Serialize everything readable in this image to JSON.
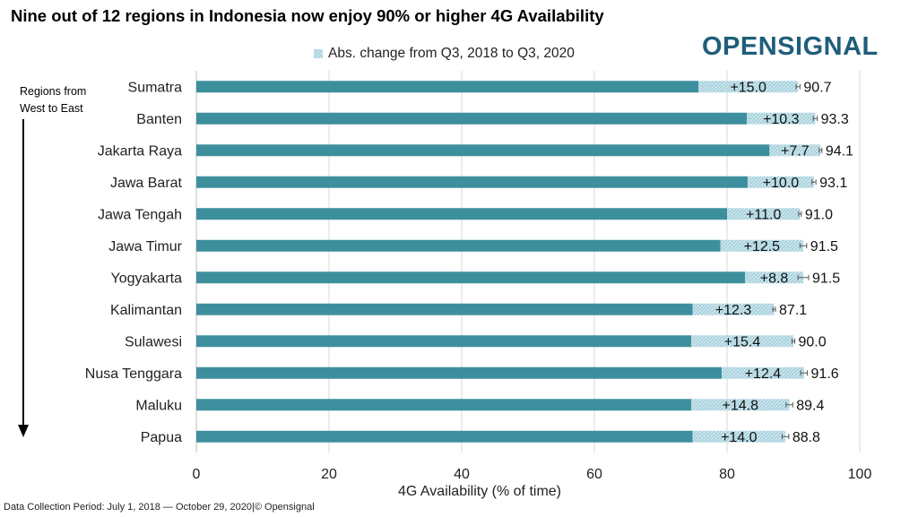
{
  "title": "Nine out of 12 regions in Indonesia now enjoy 90% or higher 4G Availability",
  "logo": "OPENSIGNAL",
  "legend_label": "Abs. change from Q3, 2018 to Q3, 2020",
  "arrow_label_line1": "Regions from",
  "arrow_label_line2": "West to East",
  "footer": "Data Collection Period: July 1, 2018 — October 29, 2020|© Opensignal",
  "colors": {
    "base": "#3e8f9e",
    "change": "#a8d2de",
    "errorbar": "#555555",
    "grid": "#d9d9d9"
  },
  "chart_data": {
    "type": "bar",
    "orientation": "horizontal",
    "stacked": true,
    "xlabel": "4G Availability (% of time)",
    "xlim": [
      0,
      100
    ],
    "xticks": [
      0,
      20,
      40,
      60,
      80,
      100
    ],
    "grid": "vertical",
    "legend_position": "top",
    "categories": [
      "Sumatra",
      "Banten",
      "Jakarta Raya",
      "Jawa Barat",
      "Jawa Tengah",
      "Jawa Timur",
      "Yogyakarta",
      "Kalimantan",
      "Sulawesi",
      "Nusa Tenggara",
      "Maluku",
      "Papua"
    ],
    "series": [
      {
        "values": [
          75.7,
          83.0,
          86.4,
          83.1,
          80.0,
          79.0,
          82.7,
          74.8,
          74.6,
          79.2,
          74.6,
          74.8
        ]
      },
      {
        "name": "Abs. change from Q3, 2018 to Q3, 2020",
        "values": [
          15.0,
          10.3,
          7.7,
          10.0,
          11.0,
          12.5,
          8.8,
          12.3,
          15.4,
          12.4,
          14.8,
          14.0
        ]
      }
    ],
    "change_labels": [
      "+15.0",
      "+10.3",
      "+7.7",
      "+10.0",
      "+11.0",
      "+12.5",
      "+8.8",
      "+12.3",
      "+15.4",
      "+12.4",
      "+14.8",
      "+14.0"
    ],
    "totals": [
      90.7,
      93.3,
      94.1,
      93.1,
      91.0,
      91.5,
      91.5,
      87.1,
      90.0,
      91.6,
      89.4,
      88.8
    ],
    "total_labels": [
      "90.7",
      "93.3",
      "94.1",
      "93.1",
      "91.0",
      "91.5",
      "91.5",
      "87.1",
      "90.0",
      "91.6",
      "89.4",
      "88.8"
    ],
    "error_margin": [
      0.3,
      0.3,
      0.2,
      0.3,
      0.2,
      0.5,
      0.8,
      0.2,
      0.2,
      0.5,
      0.5,
      0.5
    ]
  }
}
